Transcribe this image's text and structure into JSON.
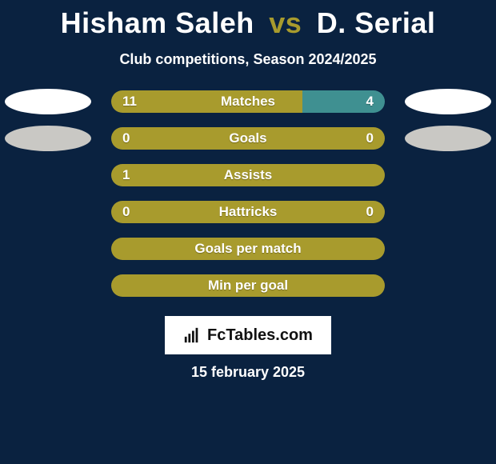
{
  "colors": {
    "page_bg": "#0a2240",
    "accent_olive": "#a89b2d",
    "accent_teal": "#3f9091",
    "ellipse_white": "#ffffff",
    "ellipse_grey": "#c9c8c4",
    "text_white": "#ffffff",
    "brand_bg": "#ffffff",
    "brand_text": "#111111"
  },
  "headline": {
    "player1": "Hisham Saleh",
    "vs": "vs",
    "player2": "D. Serial"
  },
  "subtitle": "Club competitions, Season 2024/2025",
  "stats": [
    {
      "label": "Matches",
      "left_value": "11",
      "right_value": "4",
      "left_pct": 70,
      "right_pct": 30,
      "left_color": "#a89b2d",
      "right_color": "#3f9091",
      "ellipse_left": "#ffffff",
      "ellipse_right": "#ffffff",
      "show_ellipses": true
    },
    {
      "label": "Goals",
      "left_value": "0",
      "right_value": "0",
      "left_pct": 100,
      "right_pct": 0,
      "left_color": "#a89b2d",
      "right_color": "#3f9091",
      "ellipse_left": "#c9c8c4",
      "ellipse_right": "#c9c8c4",
      "show_ellipses": true
    },
    {
      "label": "Assists",
      "left_value": "1",
      "right_value": "",
      "left_pct": 100,
      "right_pct": 0,
      "left_color": "#a89b2d",
      "right_color": "#3f9091",
      "ellipse_left": "",
      "ellipse_right": "",
      "show_ellipses": false
    },
    {
      "label": "Hattricks",
      "left_value": "0",
      "right_value": "0",
      "left_pct": 100,
      "right_pct": 0,
      "left_color": "#a89b2d",
      "right_color": "#3f9091",
      "ellipse_left": "",
      "ellipse_right": "",
      "show_ellipses": false
    },
    {
      "label": "Goals per match",
      "left_value": "",
      "right_value": "",
      "left_pct": 100,
      "right_pct": 0,
      "left_color": "#a89b2d",
      "right_color": "#3f9091",
      "ellipse_left": "",
      "ellipse_right": "",
      "show_ellipses": false
    },
    {
      "label": "Min per goal",
      "left_value": "",
      "right_value": "",
      "left_pct": 100,
      "right_pct": 0,
      "left_color": "#a89b2d",
      "right_color": "#3f9091",
      "ellipse_left": "",
      "ellipse_right": "",
      "show_ellipses": false
    }
  ],
  "brand": "FcTables.com",
  "date": "15 february 2025"
}
